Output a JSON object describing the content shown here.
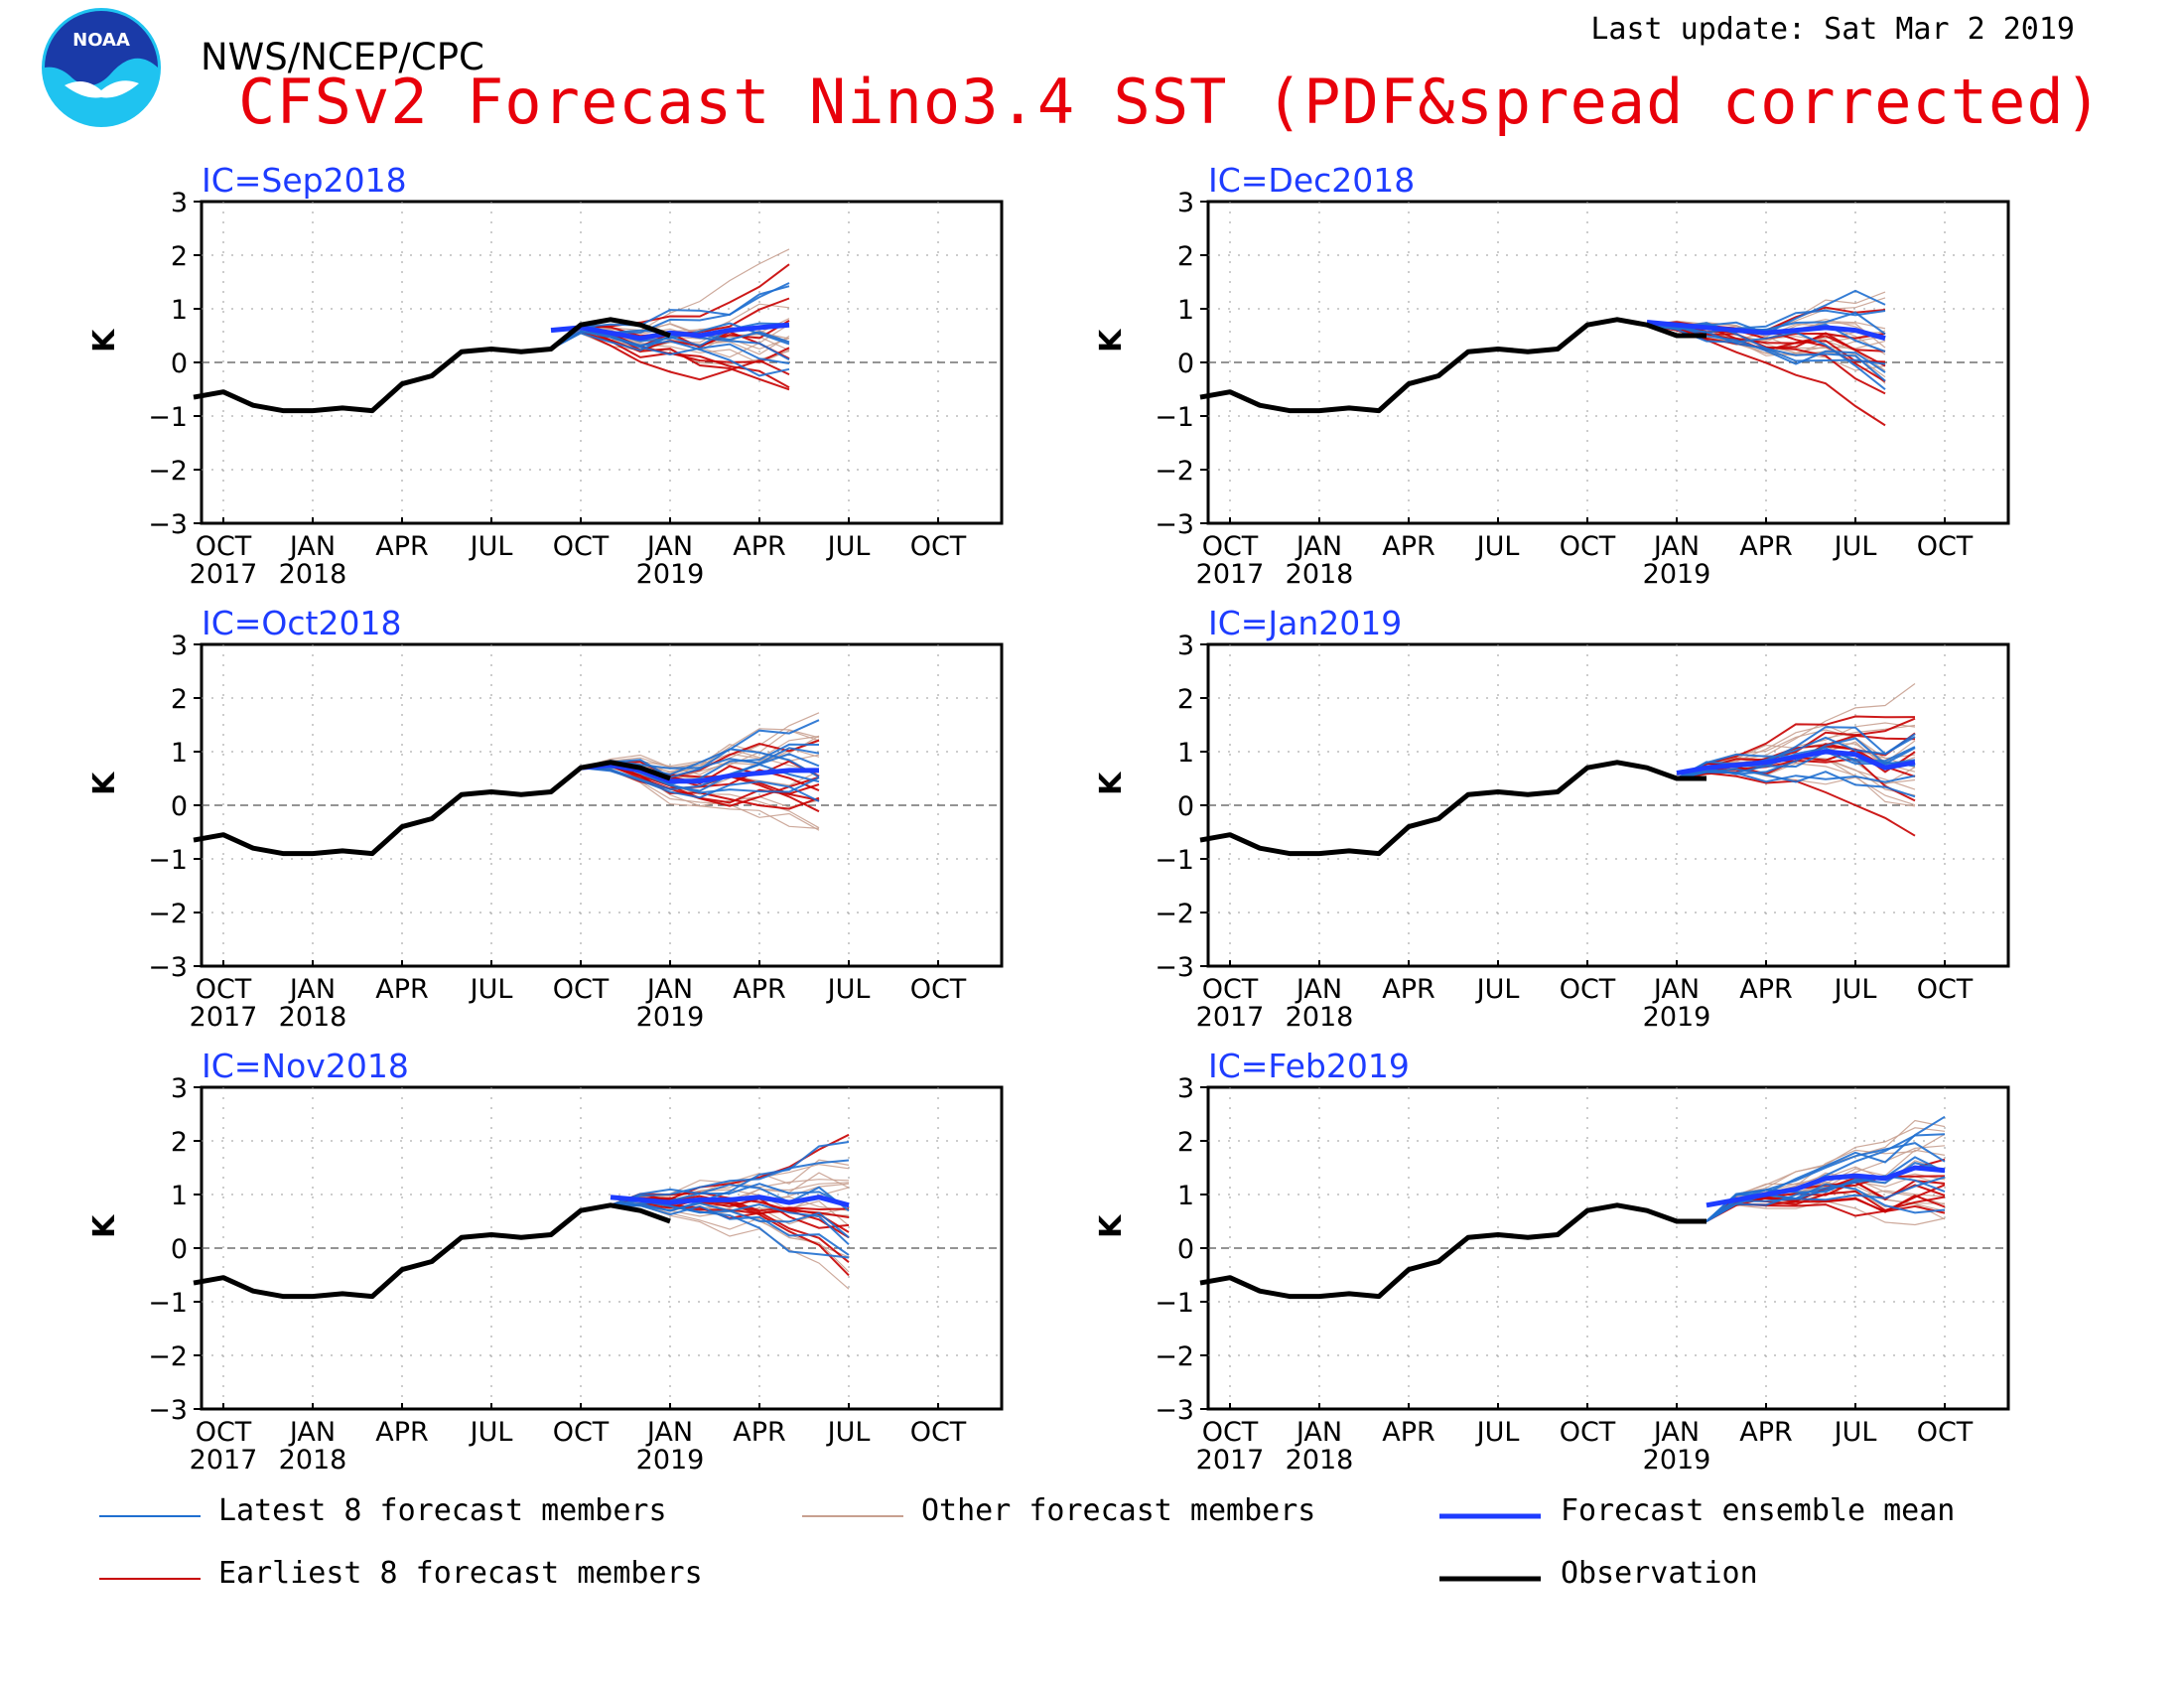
{
  "header": {
    "org": "NWS/NCEP/CPC",
    "title": "CFSv2 Forecast Nino3.4 SST (PDF&spread corrected)",
    "last_update": "Last update: Sat Mar 2 2019",
    "logo_text": "NOAA"
  },
  "colors": {
    "latest": "#1f6fd0",
    "earliest": "#c80000",
    "other": "#c8a090",
    "mean": "#1e3cff",
    "observation": "#000000",
    "ic_label": "#1e3cff",
    "title": "#e8000b"
  },
  "legend": {
    "latest": "Latest 8 forecast members",
    "other": "Other forecast members",
    "mean": "Forecast ensemble mean",
    "earliest": "Earliest 8 forecast members",
    "observation": "Observation"
  },
  "chart_data": {
    "type": "line",
    "ylabel": "K",
    "ylim": [
      -3,
      3
    ],
    "yticks": [
      "3",
      "2",
      "1",
      "0",
      "−1",
      "−2",
      "−3"
    ],
    "xtick_labels": [
      "OCT",
      "JAN",
      "APR",
      "JUL",
      "OCT",
      "JAN",
      "APR",
      "JUL",
      "OCT"
    ],
    "year_labels": {
      "2017": "2017",
      "2018": "2018",
      "2019": "2019"
    },
    "grid": "dotted",
    "observation": [
      -0.65,
      -0.55,
      -0.8,
      -0.9,
      -0.9,
      -0.85,
      -0.9,
      -0.4,
      -0.25,
      0.2,
      0.25,
      0.2,
      0.25,
      0.7,
      0.8,
      0.7,
      0.5,
      0.5
    ],
    "panels": [
      {
        "ic": "IC=Sep2018",
        "start_month": 12,
        "end_month": 21,
        "obs_end": 16,
        "mean": [
          0.6,
          0.65,
          0.55,
          0.45,
          0.55,
          0.5,
          0.6,
          0.65,
          0.7
        ]
      },
      {
        "ic": "IC=Dec2018",
        "start_month": 15,
        "end_month": 24,
        "obs_end": 17,
        "mean": [
          0.75,
          0.7,
          0.65,
          0.6,
          0.55,
          0.6,
          0.65,
          0.6,
          0.45
        ]
      },
      {
        "ic": "IC=Oct2018",
        "start_month": 13,
        "end_month": 22,
        "obs_end": 16,
        "mean": [
          0.7,
          0.75,
          0.65,
          0.45,
          0.45,
          0.55,
          0.6,
          0.65,
          0.65
        ]
      },
      {
        "ic": "IC=Jan2019",
        "start_month": 16,
        "end_month": 25,
        "obs_end": 17,
        "mean": [
          0.6,
          0.7,
          0.75,
          0.8,
          0.9,
          1.0,
          0.95,
          0.7,
          0.8
        ]
      },
      {
        "ic": "IC=Nov2018",
        "start_month": 14,
        "end_month": 23,
        "obs_end": 16,
        "mean": [
          0.95,
          0.9,
          0.85,
          0.9,
          0.9,
          0.95,
          0.85,
          0.95,
          0.8
        ]
      },
      {
        "ic": "IC=Feb2019",
        "start_month": 17,
        "end_month": 26,
        "obs_end": 17,
        "mean": [
          0.8,
          0.9,
          1.0,
          1.1,
          1.3,
          1.35,
          1.3,
          1.5,
          1.45
        ]
      }
    ]
  }
}
